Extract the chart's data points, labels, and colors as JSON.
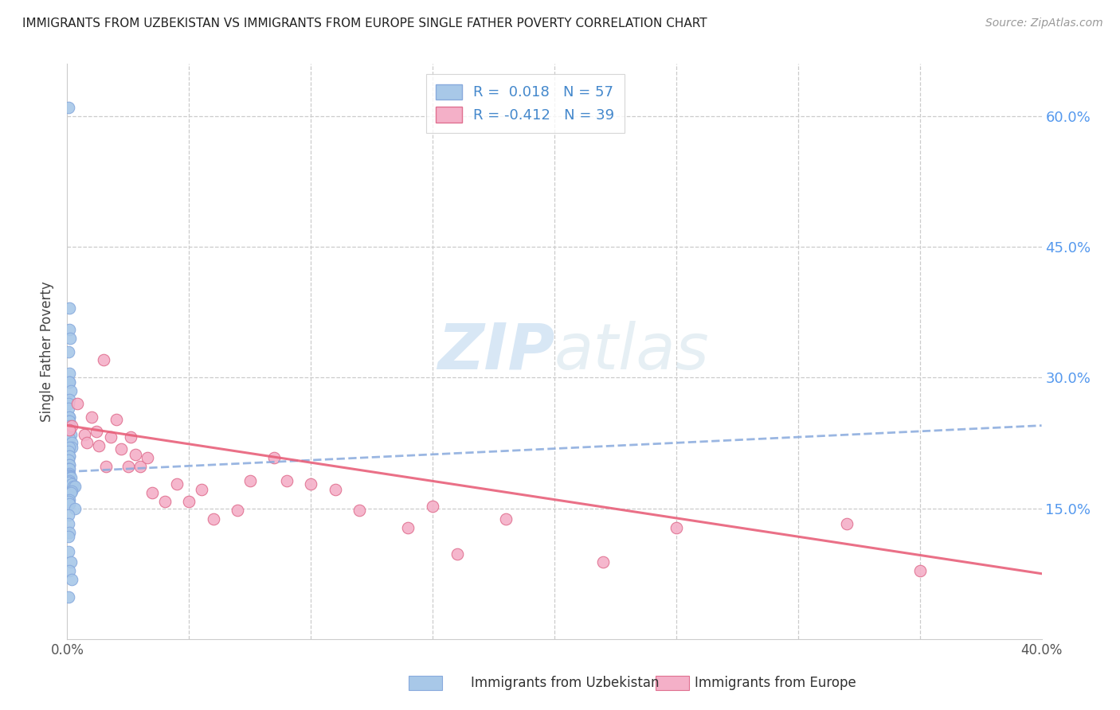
{
  "title": "IMMIGRANTS FROM UZBEKISTAN VS IMMIGRANTS FROM EUROPE SINGLE FATHER POVERTY CORRELATION CHART",
  "source": "Source: ZipAtlas.com",
  "ylabel": "Single Father Poverty",
  "yticks": [
    "60.0%",
    "45.0%",
    "30.0%",
    "15.0%"
  ],
  "ytick_vals": [
    0.6,
    0.45,
    0.3,
    0.15
  ],
  "xlim": [
    0.0,
    0.4
  ],
  "ylim": [
    0.0,
    0.66
  ],
  "color_uzbek": "#a8c8e8",
  "color_europe": "#f4b0c8",
  "trend_color_uzbek": "#88aadd",
  "trend_color_europe": "#e8607a",
  "watermark_zip": "ZIP",
  "watermark_atlas": "atlas",
  "uzbek_x": [
    0.0005,
    0.001,
    0.0008,
    0.0012,
    0.0006,
    0.001,
    0.0007,
    0.0008,
    0.0015,
    0.001,
    0.0005,
    0.0006,
    0.001,
    0.0007,
    0.0006,
    0.001,
    0.0008,
    0.0006,
    0.0014,
    0.0007,
    0.002,
    0.0018,
    0.001,
    0.0006,
    0.0007,
    0.001,
    0.0006,
    0.001,
    0.0007,
    0.0005,
    0.0006,
    0.001,
    0.0007,
    0.001,
    0.0006,
    0.0015,
    0.0007,
    0.001,
    0.0006,
    0.002,
    0.0025,
    0.003,
    0.002,
    0.0015,
    0.001,
    0.0006,
    0.0007,
    0.003,
    0.0006,
    0.0006,
    0.001,
    0.0006,
    0.0006,
    0.0015,
    0.001,
    0.002,
    0.0005
  ],
  "uzbek_y": [
    0.61,
    0.38,
    0.355,
    0.345,
    0.33,
    0.305,
    0.295,
    0.295,
    0.285,
    0.275,
    0.27,
    0.265,
    0.255,
    0.255,
    0.25,
    0.25,
    0.245,
    0.24,
    0.235,
    0.23,
    0.225,
    0.22,
    0.22,
    0.215,
    0.21,
    0.21,
    0.205,
    0.2,
    0.2,
    0.195,
    0.195,
    0.195,
    0.19,
    0.188,
    0.188,
    0.185,
    0.182,
    0.18,
    0.18,
    0.178,
    0.175,
    0.175,
    0.17,
    0.168,
    0.16,
    0.158,
    0.155,
    0.15,
    0.142,
    0.132,
    0.122,
    0.118,
    0.1,
    0.088,
    0.078,
    0.068,
    0.048
  ],
  "europe_x": [
    0.002,
    0.001,
    0.004,
    0.007,
    0.008,
    0.01,
    0.012,
    0.013,
    0.015,
    0.016,
    0.018,
    0.02,
    0.022,
    0.025,
    0.026,
    0.028,
    0.03,
    0.033,
    0.035,
    0.04,
    0.045,
    0.05,
    0.055,
    0.06,
    0.07,
    0.075,
    0.085,
    0.09,
    0.1,
    0.11,
    0.12,
    0.14,
    0.15,
    0.16,
    0.18,
    0.22,
    0.25,
    0.32,
    0.35
  ],
  "europe_y": [
    0.245,
    0.24,
    0.27,
    0.235,
    0.225,
    0.255,
    0.238,
    0.222,
    0.32,
    0.198,
    0.232,
    0.252,
    0.218,
    0.198,
    0.232,
    0.212,
    0.198,
    0.208,
    0.168,
    0.158,
    0.178,
    0.158,
    0.172,
    0.138,
    0.148,
    0.182,
    0.208,
    0.182,
    0.178,
    0.172,
    0.148,
    0.128,
    0.152,
    0.098,
    0.138,
    0.088,
    0.128,
    0.132,
    0.078
  ],
  "uzbek_trend_x": [
    0.0,
    0.4
  ],
  "uzbek_trend_y": [
    0.192,
    0.245
  ],
  "europe_trend_x": [
    0.0,
    0.4
  ],
  "europe_trend_y": [
    0.245,
    0.075
  ]
}
